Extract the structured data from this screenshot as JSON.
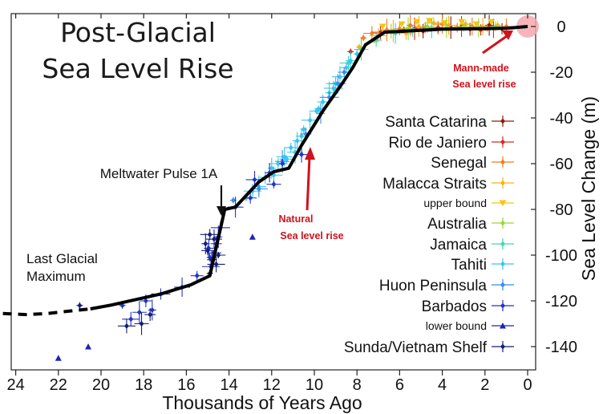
{
  "chart_data": {
    "type": "scatter",
    "title": [
      "Post-Glacial",
      "Sea Level Rise"
    ],
    "xlabel": "Thousands of Years Ago",
    "ylabel": "Sea Level Change (m)",
    "xlim": [
      24,
      0
    ],
    "ylim": [
      -150,
      5
    ],
    "x_ticks": [
      24,
      22,
      20,
      18,
      16,
      14,
      12,
      10,
      8,
      6,
      4,
      2,
      0
    ],
    "y_ticks": [
      0,
      -20,
      -40,
      -60,
      -80,
      -100,
      -120,
      -140
    ],
    "grid": false,
    "legend_position": "right",
    "trend_line": {
      "dashed": [
        [
          24.6,
          -125.5
        ],
        [
          23.5,
          -126
        ],
        [
          22.5,
          -125.5
        ],
        [
          21.5,
          -124.5
        ],
        [
          20.5,
          -123.5
        ]
      ],
      "solid": [
        [
          20.5,
          -123.5
        ],
        [
          19.5,
          -121.8
        ],
        [
          17.2,
          -117
        ],
        [
          15.8,
          -113
        ],
        [
          14.9,
          -109
        ],
        [
          14.2,
          -80
        ],
        [
          13.7,
          -79
        ],
        [
          12.6,
          -68
        ],
        [
          11.9,
          -63.5
        ],
        [
          11.2,
          -62
        ],
        [
          10.6,
          -52
        ],
        [
          9.6,
          -37
        ],
        [
          8.7,
          -25
        ],
        [
          8.2,
          -18
        ],
        [
          7.6,
          -8
        ],
        [
          6.7,
          -2.5
        ],
        [
          4,
          -1.2
        ],
        [
          1,
          -0.8
        ],
        [
          0,
          0
        ]
      ]
    },
    "series": [
      {
        "name": "Santa Catarina",
        "color": "#8b1a10",
        "marker": "diamond",
        "points": [
          [
            5.8,
            -1.5
          ],
          [
            4.9,
            -2
          ],
          [
            3.6,
            -0.5
          ],
          [
            2.7,
            -1.2
          ],
          [
            1.8,
            0.5
          ],
          [
            1.2,
            -1
          ]
        ]
      },
      {
        "name": "Rio de Janiero",
        "color": "#d42a1f",
        "marker": "diamond",
        "points": [
          [
            8.3,
            -11
          ],
          [
            6.9,
            -2.5
          ],
          [
            5.3,
            -1
          ],
          [
            4.2,
            -0.5
          ],
          [
            3.1,
            0
          ],
          [
            2.2,
            -1.5
          ],
          [
            1.6,
            -0.8
          ]
        ]
      },
      {
        "name": "Senegal",
        "color": "#f07c1c",
        "marker": "diamond",
        "points": [
          [
            7.7,
            -5
          ],
          [
            7.3,
            -3
          ],
          [
            6.6,
            -1.5
          ],
          [
            6.0,
            -1
          ],
          [
            5.5,
            0.5
          ],
          [
            4.8,
            -0.5
          ],
          [
            4.0,
            1
          ],
          [
            3.3,
            -0.5
          ],
          [
            2.6,
            0
          ],
          [
            1.9,
            -0.5
          ],
          [
            1.0,
            0
          ]
        ]
      },
      {
        "name": "Malacca Straits",
        "color": "#f5b414",
        "marker": "diamond",
        "points": [
          [
            7.9,
            -9
          ],
          [
            7.0,
            -4
          ],
          [
            6.3,
            -2
          ],
          [
            5.7,
            -3
          ],
          [
            5.1,
            0
          ],
          [
            4.4,
            1.5
          ],
          [
            3.7,
            0.5
          ],
          [
            2.9,
            1
          ],
          [
            2.1,
            0
          ],
          [
            1.4,
            0.5
          ]
        ]
      },
      {
        "name": "upper bound",
        "color": "#f5c70a",
        "marker": "tri-down",
        "points": [
          [
            6.8,
            0
          ],
          [
            5.9,
            1
          ],
          [
            5.2,
            2
          ],
          [
            4.6,
            2.5
          ],
          [
            3.9,
            1.5
          ],
          [
            3.1,
            2
          ],
          [
            2.4,
            1
          ],
          [
            1.7,
            2
          ]
        ]
      },
      {
        "name": "Australia",
        "color": "#9bd63a",
        "marker": "diamond",
        "points": [
          [
            7.2,
            -6
          ],
          [
            6.4,
            -2
          ],
          [
            5.6,
            -1
          ],
          [
            4.7,
            0
          ],
          [
            3.8,
            -0.5
          ],
          [
            3.0,
            0
          ],
          [
            2.3,
            -0.5
          ],
          [
            1.5,
            0
          ]
        ]
      },
      {
        "name": "Jamaica",
        "color": "#3fd6b4",
        "marker": "diamond",
        "points": [
          [
            9.0,
            -28
          ],
          [
            8.4,
            -16
          ],
          [
            7.8,
            -10
          ],
          [
            7.1,
            -6
          ],
          [
            6.2,
            -3
          ],
          [
            5.4,
            -2
          ],
          [
            4.5,
            -1
          ]
        ]
      },
      {
        "name": "Tahiti",
        "color": "#36c6f2",
        "marker": "diamond",
        "points": [
          [
            13.2,
            -75
          ],
          [
            12.9,
            -72
          ],
          [
            12.6,
            -70
          ],
          [
            12.3,
            -66
          ],
          [
            12.0,
            -62
          ],
          [
            11.7,
            -60
          ],
          [
            11.4,
            -57
          ],
          [
            11.1,
            -53
          ],
          [
            10.8,
            -50
          ],
          [
            10.5,
            -45
          ],
          [
            10.2,
            -41
          ],
          [
            9.9,
            -37
          ],
          [
            9.6,
            -33
          ],
          [
            9.3,
            -29
          ],
          [
            9.0,
            -25
          ],
          [
            8.8,
            -22
          ],
          [
            8.5,
            -18
          ],
          [
            8.3,
            -15
          ],
          [
            8.0,
            -12
          ],
          [
            11.9,
            -65
          ],
          [
            11.3,
            -58
          ],
          [
            10.6,
            -48
          ],
          [
            9.8,
            -36
          ],
          [
            9.1,
            -27
          ],
          [
            10.9,
            -55
          ]
        ]
      },
      {
        "name": "Huon Peninsula",
        "color": "#3a8be8",
        "marker": "diamond",
        "points": [
          [
            13.8,
            -76
          ],
          [
            12.6,
            -71
          ],
          [
            11.5,
            -59
          ],
          [
            10.4,
            -47
          ],
          [
            9.7,
            -38
          ],
          [
            9.3,
            -31
          ],
          [
            8.9,
            -25
          ],
          [
            8.6,
            -20
          ]
        ]
      },
      {
        "name": "Barbados",
        "color": "#2233c9",
        "marker": "diamond",
        "points": [
          [
            19.0,
            -122
          ],
          [
            18.6,
            -128
          ],
          [
            18.2,
            -125
          ],
          [
            17.9,
            -120
          ],
          [
            17.6,
            -124
          ],
          [
            17.2,
            -117
          ],
          [
            16.2,
            -114
          ],
          [
            15.5,
            -109
          ],
          [
            14.95,
            -97
          ],
          [
            14.9,
            -101
          ],
          [
            14.85,
            -105
          ],
          [
            14.7,
            -99
          ],
          [
            14.6,
            -95
          ],
          [
            14.5,
            -92
          ],
          [
            14.4,
            -88
          ],
          [
            13.7,
            -79
          ],
          [
            13.0,
            -75
          ],
          [
            12.1,
            -64
          ],
          [
            11.5,
            -60
          ],
          [
            12.8,
            -67
          ],
          [
            11.9,
            -69
          ],
          [
            10.6,
            -56
          ]
        ]
      },
      {
        "name": "lower bound",
        "color": "#1c24b4",
        "marker": "tri-up",
        "points": [
          [
            22.0,
            -145
          ],
          [
            20.6,
            -140
          ],
          [
            12.9,
            -92
          ]
        ]
      },
      {
        "name": "Sunda/Vietnam Shelf",
        "color": "#151e7a",
        "marker": "diamond",
        "points": [
          [
            21.0,
            -122
          ],
          [
            18.8,
            -131
          ],
          [
            18.1,
            -130
          ],
          [
            17.7,
            -126
          ],
          [
            15.1,
            -95
          ],
          [
            14.9,
            -91
          ],
          [
            14.7,
            -93
          ],
          [
            15.0,
            -98
          ],
          [
            14.8,
            -102
          ],
          [
            14.9,
            -108
          ],
          [
            14.6,
            -104
          ],
          [
            14.5,
            -100
          ]
        ]
      }
    ],
    "annotations": [
      {
        "text": "Meltwater Pulse 1A",
        "arrow": "down",
        "x": 14.65,
        "y": -78
      },
      {
        "text": "Last Glacial",
        "text2": "Maximum"
      },
      {
        "text": "Natural",
        "text2": "Sea level rise",
        "color": "#d0121b"
      },
      {
        "text": "Mann-made",
        "text2": "Sea level rise",
        "color": "#d0121b"
      }
    ]
  }
}
